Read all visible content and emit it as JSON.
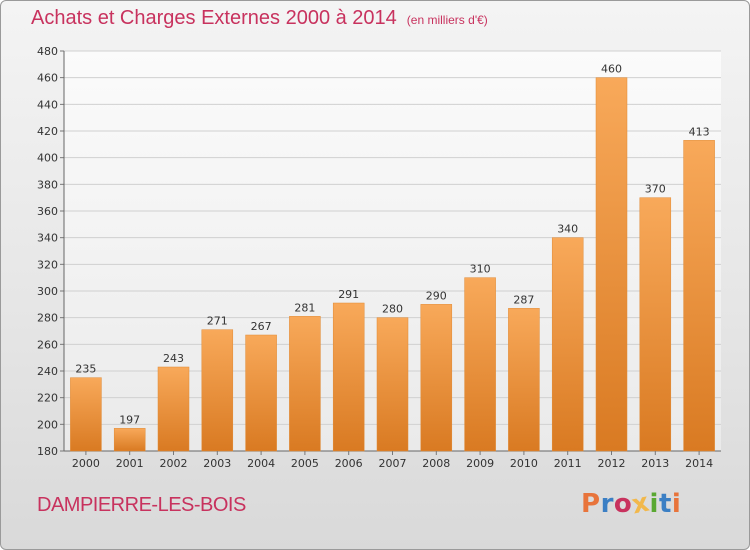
{
  "header": {
    "title": "Achats et Charges Externes 2000 à 2014",
    "unit": "(en milliers d'€)"
  },
  "footer": {
    "place": "DAMPIERRE-LES-BOIS",
    "logo_text": "Proxiti"
  },
  "colors": {
    "accent": "#c8325e",
    "bar_light": "#f8a95a",
    "bar_dark": "#d97a22",
    "logo_letters": [
      "#e8743b",
      "#3b7fc4",
      "#c8325e",
      "#f2b84b",
      "#5aa832",
      "#3b7fc4",
      "#e8743b"
    ]
  },
  "chart_data": {
    "type": "bar",
    "title": "Achats et Charges Externes 2000 à 2014",
    "subtitle": "(en milliers d'€)",
    "categories": [
      "2000",
      "2001",
      "2002",
      "2003",
      "2004",
      "2005",
      "2006",
      "2007",
      "2008",
      "2009",
      "2010",
      "2011",
      "2012",
      "2013",
      "2014"
    ],
    "values": [
      235,
      197,
      243,
      271,
      267,
      281,
      291,
      280,
      290,
      310,
      287,
      340,
      460,
      370,
      413
    ],
    "ylim": [
      180,
      480
    ],
    "yticks": [
      180,
      200,
      220,
      240,
      260,
      280,
      300,
      320,
      340,
      360,
      380,
      400,
      420,
      440,
      460,
      480
    ],
    "grid": true,
    "xlabel": "",
    "ylabel": ""
  }
}
